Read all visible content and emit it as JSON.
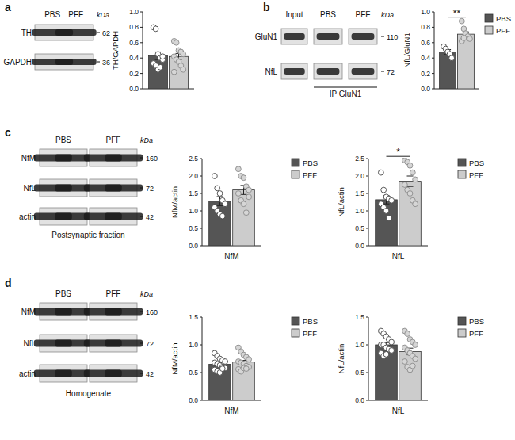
{
  "chart_data": [
    {
      "type": "bar",
      "ylabel": "TH/GAPDH",
      "categories": [
        null
      ],
      "ylim": [
        0,
        1.0
      ],
      "yticks": [
        {
          "value": 0,
          "label": "0.0"
        },
        0.2,
        0.4,
        0.6,
        0.8,
        {
          "value": 1,
          "label": "1.0"
        }
      ],
      "series": [
        {
          "name": "PBS",
          "color": "#555555",
          "values": [
            0.43
          ],
          "errors": [
            0.05
          ],
          "points": [
            [
              0.8,
              0.78,
              0.45,
              0.4,
              0.38,
              0.33,
              0.3,
              0.25,
              0.28,
              0.42
            ]
          ]
        },
        {
          "name": "PFF",
          "color": "#cccccc",
          "values": [
            0.42
          ],
          "errors": [
            0.04
          ],
          "points": [
            [
              0.62,
              0.6,
              0.5,
              0.48,
              0.45,
              0.42,
              0.38,
              0.35,
              0.3,
              0.25,
              0.22
            ]
          ]
        }
      ]
    },
    {
      "type": "bar",
      "ylabel": "NfL/GluN1",
      "categories": [
        null
      ],
      "ylim": [
        0,
        1.0
      ],
      "yticks": [
        {
          "value": 0,
          "label": "0.0"
        },
        0.2,
        0.4,
        0.6,
        0.8,
        {
          "value": 1,
          "label": "1.0"
        }
      ],
      "legend": "right",
      "annotation": "**",
      "series": [
        {
          "name": "PBS",
          "color": "#555555",
          "values": [
            0.48
          ],
          "errors": [
            0.03
          ],
          "points": [
            [
              0.55,
              0.52,
              0.48,
              0.45,
              0.4
            ]
          ]
        },
        {
          "name": "PFF",
          "color": "#cccccc",
          "values": [
            0.71
          ],
          "errors": [
            0.03
          ],
          "points": [
            [
              0.88,
              0.78,
              0.72,
              0.68,
              0.65,
              0.62,
              0.66
            ]
          ]
        }
      ]
    },
    {
      "type": "bar",
      "ylabel": "NfM/actin",
      "categories": [
        "NfM"
      ],
      "ylim": [
        0,
        2.5
      ],
      "yticks": [
        {
          "value": 0,
          "label": "0.0"
        },
        0.5,
        {
          "value": 1,
          "label": "1.0"
        },
        1.5,
        {
          "value": 2,
          "label": "2.0"
        },
        2.5
      ],
      "legend": "right",
      "series": [
        {
          "name": "PBS",
          "color": "#555555",
          "values": [
            1.28
          ],
          "errors": [
            0.13
          ],
          "points": [
            [
              2.0,
              1.65,
              1.5,
              1.3,
              1.2,
              1.1,
              1.0,
              0.9,
              0.85
            ]
          ]
        },
        {
          "name": "PFF",
          "color": "#cccccc",
          "values": [
            1.6
          ],
          "errors": [
            0.13
          ],
          "points": [
            [
              2.2,
              2.0,
              1.95,
              1.7,
              1.6,
              1.5,
              1.3,
              1.2,
              0.95,
              1.4
            ]
          ]
        }
      ]
    },
    {
      "type": "bar",
      "ylabel": "NfL/actin",
      "categories": [
        "NfL"
      ],
      "ylim": [
        0,
        2.5
      ],
      "yticks": [
        {
          "value": 0,
          "label": "0.0"
        },
        0.5,
        {
          "value": 1,
          "label": "1.0"
        },
        1.5,
        {
          "value": 2,
          "label": "2.0"
        },
        2.5
      ],
      "legend": "right",
      "annotation": "*",
      "series": [
        {
          "name": "PBS",
          "color": "#555555",
          "values": [
            1.32
          ],
          "errors": [
            0.12
          ],
          "points": [
            [
              2.1,
              1.6,
              1.4,
              1.35,
              1.3,
              1.2,
              1.1,
              1.0,
              0.8
            ]
          ]
        },
        {
          "name": "PFF",
          "color": "#cccccc",
          "values": [
            1.85
          ],
          "errors": [
            0.15
          ],
          "points": [
            [
              2.45,
              2.4,
              2.3,
              2.1,
              1.9,
              1.75,
              1.6,
              1.5,
              1.3,
              1.2
            ]
          ]
        }
      ]
    },
    {
      "type": "bar",
      "ylabel": "NfM/actin",
      "categories": [
        "NfM"
      ],
      "ylim": [
        0,
        1.5
      ],
      "yticks": [
        {
          "value": 0,
          "label": "0.0"
        },
        0.5,
        {
          "value": 1,
          "label": "1.0"
        },
        1.5
      ],
      "legend": "right",
      "series": [
        {
          "name": "PBS",
          "color": "#555555",
          "values": [
            0.65
          ],
          "errors": [
            0.03
          ],
          "points": [
            [
              0.85,
              0.8,
              0.75,
              0.72,
              0.7,
              0.68,
              0.65,
              0.63,
              0.6,
              0.58,
              0.55,
              0.52,
              0.5,
              0.57
            ]
          ]
        },
        {
          "name": "PFF",
          "color": "#cccccc",
          "values": [
            0.69
          ],
          "errors": [
            0.03
          ],
          "points": [
            [
              0.95,
              0.88,
              0.82,
              0.78,
              0.74,
              0.7,
              0.68,
              0.66,
              0.62,
              0.6,
              0.56,
              0.52,
              0.58,
              0.57
            ]
          ]
        }
      ]
    },
    {
      "type": "bar",
      "ylabel": "NfL/actin",
      "categories": [
        "NfL"
      ],
      "ylim": [
        0,
        1.5
      ],
      "yticks": [
        {
          "value": 0,
          "label": "0.0"
        },
        0.5,
        {
          "value": 1,
          "label": "1.0"
        },
        1.5
      ],
      "legend": "right",
      "series": [
        {
          "name": "PBS",
          "color": "#555555",
          "values": [
            1.0
          ],
          "errors": [
            0.04
          ],
          "points": [
            [
              1.25,
              1.2,
              1.15,
              1.1,
              1.05,
              1.0,
              1.0,
              0.95,
              0.92,
              0.9,
              0.85,
              0.8,
              0.83
            ]
          ]
        },
        {
          "name": "PFF",
          "color": "#cccccc",
          "values": [
            0.88
          ],
          "errors": [
            0.06
          ],
          "points": [
            [
              1.25,
              1.2,
              1.1,
              1.05,
              1.0,
              0.95,
              0.9,
              0.85,
              0.8,
              0.75,
              0.7,
              0.6,
              0.55,
              0.62
            ]
          ]
        }
      ]
    }
  ],
  "blots": [
    {
      "panel": "a",
      "unit": "kDa",
      "lanes": [
        "PBS",
        "PFF"
      ],
      "rows": [
        {
          "label": "TH",
          "kda": 62
        },
        {
          "label": "GAPDH",
          "kda": 36
        }
      ]
    },
    {
      "panel": "b",
      "unit": "kDa",
      "lanes": [
        "Input",
        "PBS",
        "PFF"
      ],
      "rows": [
        {
          "label": "GluN1",
          "kda": 110
        },
        {
          "label": "NfL",
          "kda": 72
        }
      ],
      "ip_label": "IP GluN1"
    },
    {
      "panel": "c",
      "unit": "kDa",
      "lanes": [
        "PBS",
        "PFF"
      ],
      "rows": [
        {
          "label": "NfM",
          "kda": 160
        },
        {
          "label": "NfL",
          "kda": 72
        },
        {
          "label": "actin",
          "kda": 42
        }
      ],
      "caption": "Postsynaptic fraction"
    },
    {
      "panel": "d",
      "unit": "kDa",
      "lanes": [
        "PBS",
        "PFF"
      ],
      "rows": [
        {
          "label": "NfM",
          "kda": 160
        },
        {
          "label": "NfL",
          "kda": 72
        },
        {
          "label": "actin",
          "kda": 42
        }
      ],
      "caption": "Homogenate"
    }
  ]
}
